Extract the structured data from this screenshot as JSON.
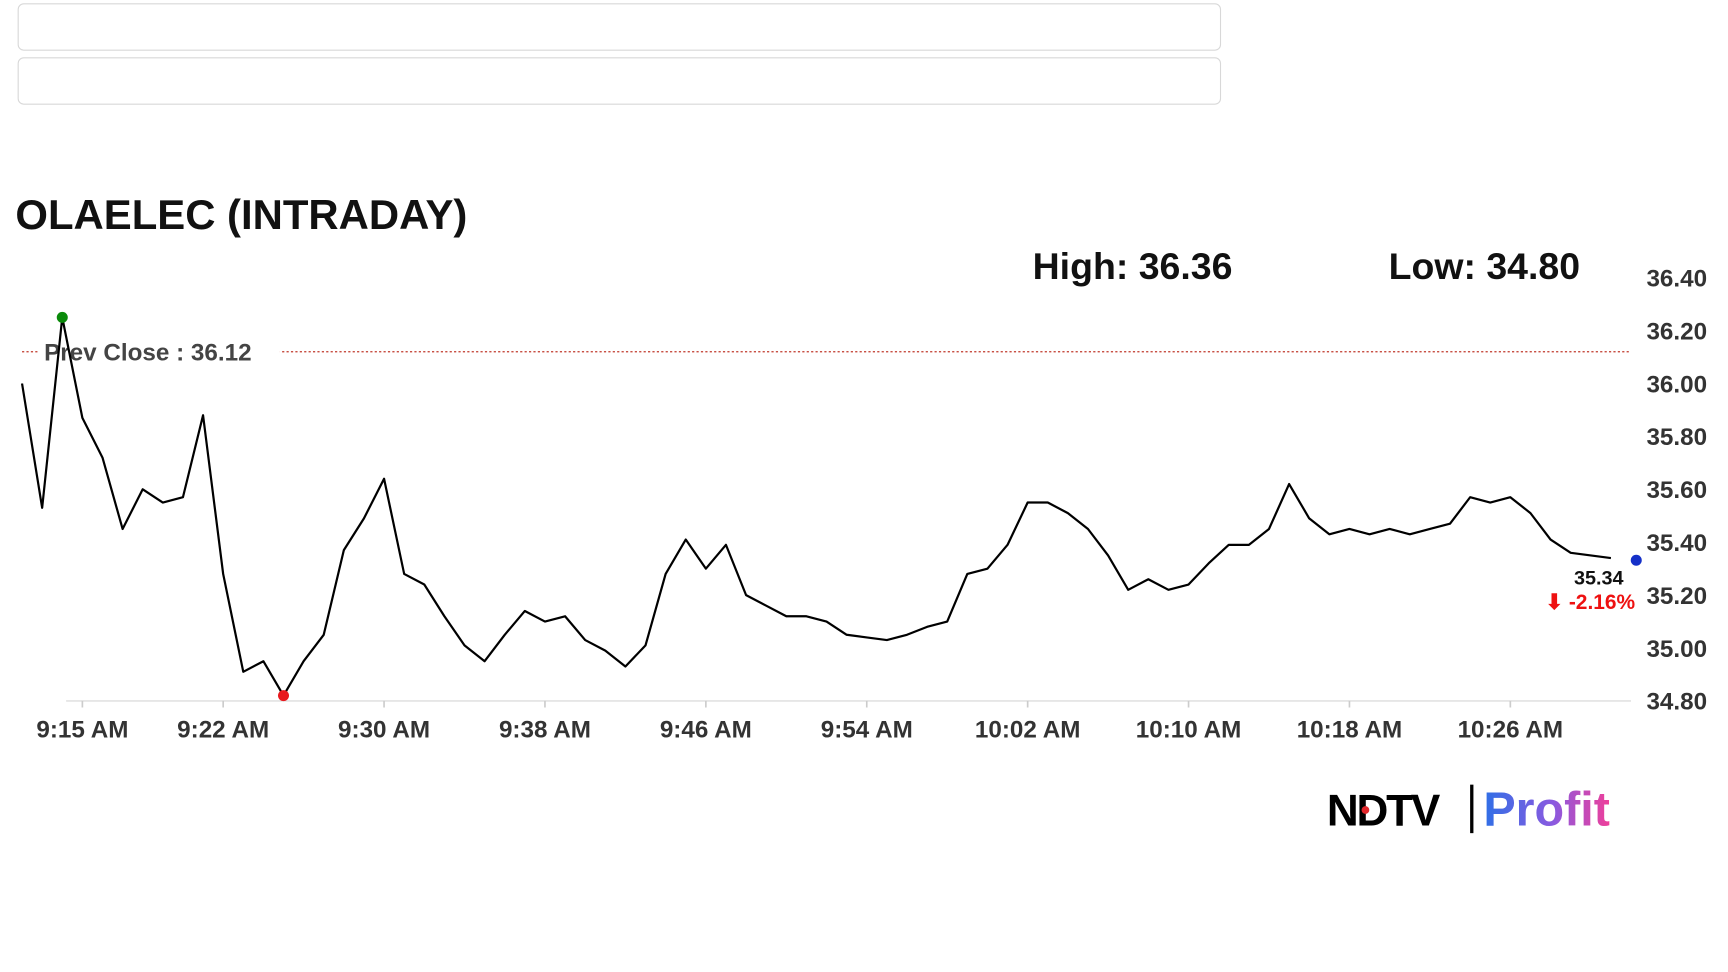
{
  "chart_data": {
    "type": "line",
    "title": "OLAELEC (INTRADAY)",
    "high_label": "High:",
    "high": 36.36,
    "low_label": "Low:",
    "low": 34.8,
    "prev_close_label": "Prev Close :",
    "prev_close": 36.12,
    "last": 35.34,
    "change_pct": -2.16,
    "change_pct_label": "-2.16%",
    "brand": [
      "NDTV",
      "Profit"
    ],
    "xlim": [
      "9:12 AM",
      "10:32 AM"
    ],
    "xticks": [
      "9:15 AM",
      "9:22 AM",
      "9:30 AM",
      "9:38 AM",
      "9:46 AM",
      "9:54 AM",
      "10:02 AM",
      "10:10 AM",
      "10:18 AM",
      "10:26 AM"
    ],
    "ylim": [
      34.8,
      36.4
    ],
    "yticks": [
      {
        "value": 34.8,
        "label": "34.80"
      },
      {
        "value": 35,
        "label": "35.00"
      },
      {
        "value": 35.2,
        "label": "35.20"
      },
      {
        "value": 35.4,
        "label": "35.40"
      },
      {
        "value": 35.6,
        "label": "35.60"
      },
      {
        "value": 35.8,
        "label": "35.80"
      },
      {
        "value": 36,
        "label": "36.00"
      },
      {
        "value": 36.2,
        "label": "36.20"
      },
      {
        "value": 36.4,
        "label": "36.40"
      }
    ],
    "x": [
      "9:12 AM",
      "9:13 AM",
      "9:14 AM",
      "9:15 AM",
      "9:16 AM",
      "9:17 AM",
      "9:18 AM",
      "9:19 AM",
      "9:20 AM",
      "9:21 AM",
      "9:22 AM",
      "9:23 AM",
      "9:24 AM",
      "9:25 AM",
      "9:26 AM",
      "9:27 AM",
      "9:28 AM",
      "9:29 AM",
      "9:30 AM",
      "9:31 AM",
      "9:32 AM",
      "9:33 AM",
      "9:34 AM",
      "9:35 AM",
      "9:36 AM",
      "9:37 AM",
      "9:38 AM",
      "9:39 AM",
      "9:40 AM",
      "9:41 AM",
      "9:42 AM",
      "9:43 AM",
      "9:44 AM",
      "9:45 AM",
      "9:46 AM",
      "9:47 AM",
      "9:48 AM",
      "9:49 AM",
      "9:50 AM",
      "9:51 AM",
      "9:52 AM",
      "9:53 AM",
      "9:54 AM",
      "9:55 AM",
      "9:56 AM",
      "9:57 AM",
      "9:58 AM",
      "9:59 AM",
      "10:00 AM",
      "10:01 AM",
      "10:02 AM",
      "10:03 AM",
      "10:04 AM",
      "10:05 AM",
      "10:06 AM",
      "10:07 AM",
      "10:08 AM",
      "10:09 AM",
      "10:10 AM",
      "10:11 AM",
      "10:12 AM",
      "10:13 AM",
      "10:14 AM",
      "10:15 AM",
      "10:16 AM",
      "10:17 AM",
      "10:18 AM",
      "10:19 AM",
      "10:20 AM",
      "10:21 AM",
      "10:22 AM",
      "10:23 AM",
      "10:24 AM",
      "10:25 AM",
      "10:26 AM",
      "10:27 AM",
      "10:28 AM",
      "10:29 AM",
      "10:30 AM",
      "10:31 AM"
    ],
    "series": [
      {
        "name": "OLAELEC",
        "color": "#000000",
        "values": [
          36.0,
          35.53,
          36.25,
          35.87,
          35.72,
          35.45,
          35.6,
          35.55,
          35.57,
          35.88,
          35.28,
          34.91,
          34.95,
          34.82,
          34.95,
          35.05,
          35.37,
          35.49,
          35.64,
          35.28,
          35.24,
          35.12,
          35.01,
          34.95,
          35.05,
          35.14,
          35.1,
          35.12,
          35.03,
          34.99,
          34.93,
          35.01,
          35.28,
          35.41,
          35.3,
          35.39,
          35.2,
          35.16,
          35.12,
          35.12,
          35.1,
          35.05,
          35.04,
          35.03,
          35.05,
          35.08,
          35.1,
          35.28,
          35.3,
          35.39,
          35.55,
          35.55,
          35.51,
          35.45,
          35.35,
          35.22,
          35.26,
          35.22,
          35.24,
          35.32,
          35.39,
          35.39,
          35.45,
          35.62,
          35.49,
          35.43,
          35.45,
          35.43,
          35.45,
          35.43,
          35.45,
          35.47,
          35.57,
          35.55,
          35.57,
          35.51,
          35.41,
          35.36,
          35.35,
          35.34
        ]
      }
    ]
  }
}
